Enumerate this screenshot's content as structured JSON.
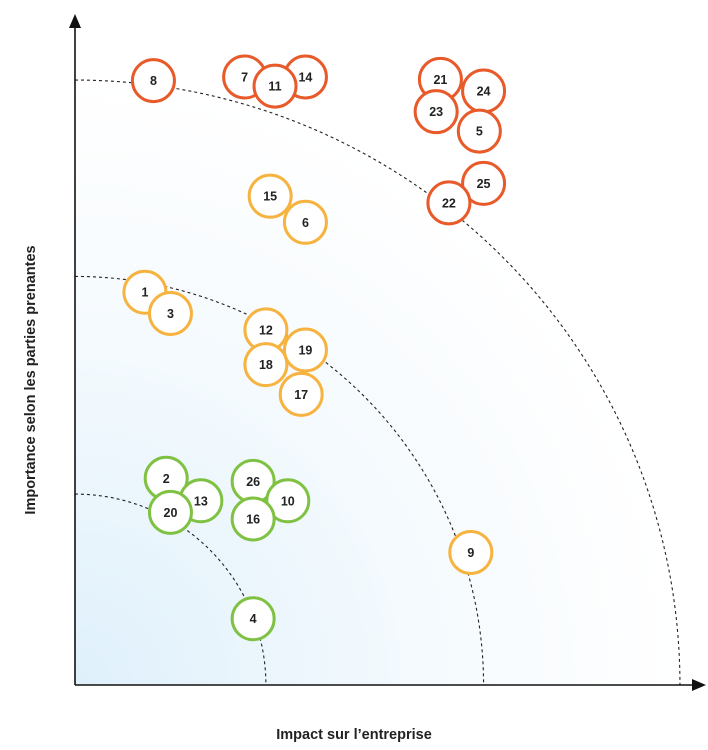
{
  "chart_data": {
    "type": "scatter",
    "xlabel": "Impact sur l’entreprise",
    "ylabel": "Importance selon les parties prenantes",
    "xlim": [
      0,
      10
    ],
    "ylim": [
      0,
      10
    ],
    "grid": false,
    "zones": [
      3.14,
      6.72,
      9.95
    ],
    "colors": {
      "red": "#e85a2a",
      "orange": "#f6b340",
      "green": "#7fc243",
      "gradient": "#dff0fb",
      "axis": "#111111"
    },
    "points": [
      {
        "label": "8",
        "x": 1.29,
        "y": 9.94,
        "group": "red"
      },
      {
        "label": "7",
        "x": 2.79,
        "y": 10.0,
        "group": "red"
      },
      {
        "label": "14",
        "x": 3.79,
        "y": 10.0,
        "group": "red"
      },
      {
        "label": "11",
        "x": 3.29,
        "y": 9.85,
        "group": "red"
      },
      {
        "label": "21",
        "x": 6.01,
        "y": 9.96,
        "group": "red"
      },
      {
        "label": "24",
        "x": 6.72,
        "y": 9.77,
        "group": "red"
      },
      {
        "label": "23",
        "x": 5.94,
        "y": 9.43,
        "group": "red"
      },
      {
        "label": "5",
        "x": 6.65,
        "y": 9.11,
        "group": "red"
      },
      {
        "label": "25",
        "x": 6.72,
        "y": 8.25,
        "group": "red"
      },
      {
        "label": "22",
        "x": 6.15,
        "y": 7.93,
        "group": "red"
      },
      {
        "label": "15",
        "x": 3.21,
        "y": 8.04,
        "group": "orange"
      },
      {
        "label": "6",
        "x": 3.79,
        "y": 7.61,
        "group": "orange"
      },
      {
        "label": "1",
        "x": 1.15,
        "y": 6.46,
        "group": "orange"
      },
      {
        "label": "3",
        "x": 1.57,
        "y": 6.11,
        "group": "orange"
      },
      {
        "label": "12",
        "x": 3.14,
        "y": 5.84,
        "group": "orange"
      },
      {
        "label": "19",
        "x": 3.79,
        "y": 5.51,
        "group": "orange"
      },
      {
        "label": "18",
        "x": 3.14,
        "y": 5.27,
        "group": "orange"
      },
      {
        "label": "17",
        "x": 3.72,
        "y": 4.78,
        "group": "orange"
      },
      {
        "label": "9",
        "x": 6.51,
        "y": 2.18,
        "group": "orange"
      },
      {
        "label": "2",
        "x": 1.5,
        "y": 3.4,
        "group": "green"
      },
      {
        "label": "13",
        "x": 2.07,
        "y": 3.03,
        "group": "green"
      },
      {
        "label": "20",
        "x": 1.57,
        "y": 2.84,
        "group": "green"
      },
      {
        "label": "26",
        "x": 2.93,
        "y": 3.35,
        "group": "green"
      },
      {
        "label": "10",
        "x": 3.5,
        "y": 3.03,
        "group": "green"
      },
      {
        "label": "16",
        "x": 2.93,
        "y": 2.73,
        "group": "green"
      },
      {
        "label": "4",
        "x": 2.93,
        "y": 1.09,
        "group": "green"
      }
    ]
  }
}
